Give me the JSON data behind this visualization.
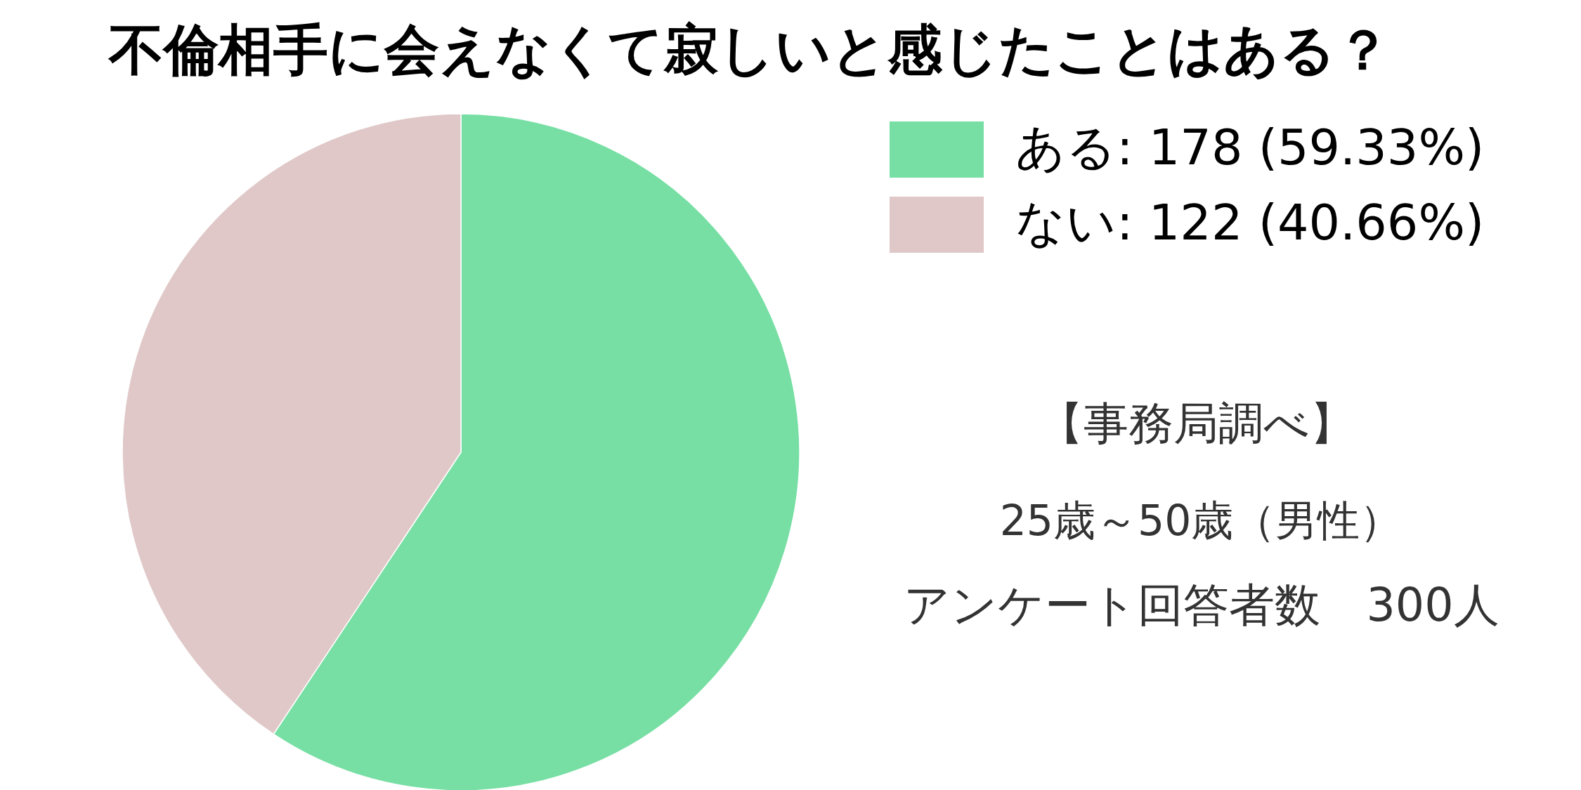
{
  "chart_data": {
    "type": "pie",
    "title": "不倫相手に会えなくて寂しいと感じたことはある？",
    "categories": [
      "ある: 178 (59.33%)",
      "ない: 122 (40.66%)"
    ],
    "values": [
      178,
      122
    ],
    "colors": [
      "#77dfa4",
      "#e0c8c8"
    ],
    "legend": "top right",
    "annotations": [
      "【事務局調べ】",
      "25歳～50歳（男性）",
      "アンケート回答者数　300人"
    ]
  }
}
